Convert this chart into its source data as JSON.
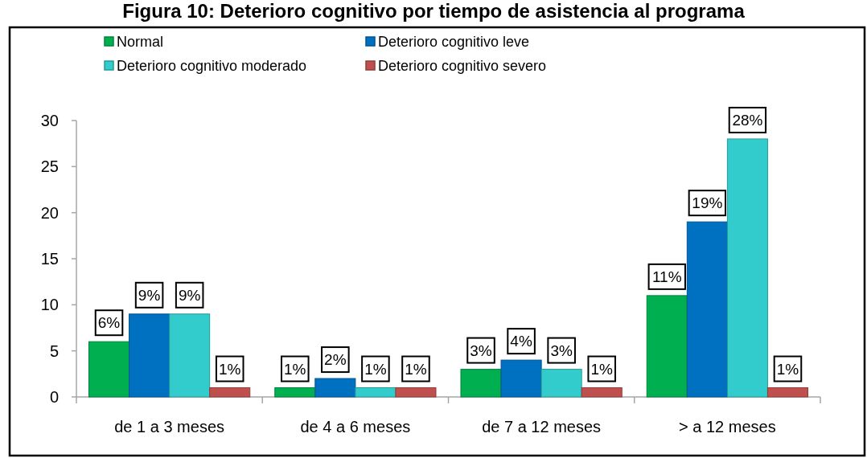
{
  "chart_data": {
    "type": "bar",
    "title": "Figura 10: Deterioro cognitivo por tiempo de asistencia al programa",
    "categories": [
      "de 1 a 3 meses",
      "de 4 a 6 meses",
      "de 7 a 12 meses",
      "> a 12 meses"
    ],
    "series": [
      {
        "name": "Normal",
        "color": "#00b050",
        "values": [
          6,
          1,
          3,
          11
        ],
        "value_labels": [
          "6%",
          "1%",
          "3%",
          "11%"
        ]
      },
      {
        "name": "Deterioro cognitivo leve",
        "color": "#0070c0",
        "values": [
          9,
          2,
          4,
          19
        ],
        "value_labels": [
          "9%",
          "2%",
          "4%",
          "19%"
        ]
      },
      {
        "name": "Deterioro cognitivo moderado",
        "color": "#33cccc",
        "values": [
          9,
          1,
          3,
          28
        ],
        "value_labels": [
          "9%",
          "1%",
          "3%",
          "28%"
        ]
      },
      {
        "name": "Deterioro cognitivo severo",
        "color": "#c0504d",
        "values": [
          1,
          1,
          1,
          1
        ],
        "value_labels": [
          "1%",
          "1%",
          "1%",
          "1%"
        ]
      }
    ],
    "ylim": [
      0,
      30
    ],
    "yticks": [
      0,
      5,
      10,
      15,
      20,
      25,
      30
    ],
    "legend": "top"
  }
}
